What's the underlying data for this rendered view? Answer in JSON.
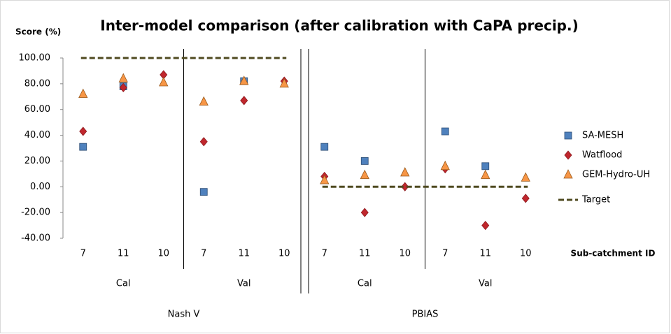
{
  "chart_data": {
    "type": "scatter",
    "title": "Inter-model comparison (after calibration with CaPA precip.)",
    "y_label": "Score (%)",
    "x_label": "Sub-catchment ID",
    "categories": [
      "7",
      "11",
      "10",
      "7",
      "11",
      "10",
      "7",
      "11",
      "10",
      "7",
      "11",
      "10"
    ],
    "subgroups": [
      "Cal",
      "Val",
      "Cal",
      "Val"
    ],
    "groups": [
      "Nash V",
      "PBIAS"
    ],
    "series": [
      {
        "name": "SA-MESH",
        "color": "#4f81bd",
        "marker": "square",
        "values": [
          31,
          78,
          null,
          -4,
          82,
          null,
          31,
          20,
          null,
          43,
          16,
          null
        ]
      },
      {
        "name": "Watflood",
        "color": "#c0272d",
        "marker": "diamond",
        "values": [
          43,
          77,
          87,
          35,
          67,
          82,
          8,
          -20,
          0,
          14,
          -30,
          -9
        ]
      },
      {
        "name": "GEM-Hydro-UH",
        "color": "#f79646",
        "marker": "triangle",
        "values": [
          72,
          84,
          81,
          66,
          82,
          80,
          5,
          9,
          11,
          16,
          9,
          7
        ]
      },
      {
        "name": "Target",
        "color": "#4f4a20",
        "marker": "dashed-line",
        "values": [
          100,
          100,
          100,
          100,
          100,
          100,
          0,
          0,
          0,
          0,
          0,
          0
        ]
      }
    ],
    "ylim": [
      -40,
      100
    ],
    "yticks": [
      {
        "value": -40,
        "label": "-40.00"
      },
      {
        "value": -20,
        "label": "-20.00"
      },
      {
        "value": 0,
        "label": "0.00"
      },
      {
        "value": 20,
        "label": "20.00"
      },
      {
        "value": 40,
        "label": "40.00"
      },
      {
        "value": 60,
        "label": "60.00"
      },
      {
        "value": 80,
        "label": "80.00"
      },
      {
        "value": 100,
        "label": "100.00"
      }
    ],
    "grid": false,
    "legend": "right"
  }
}
